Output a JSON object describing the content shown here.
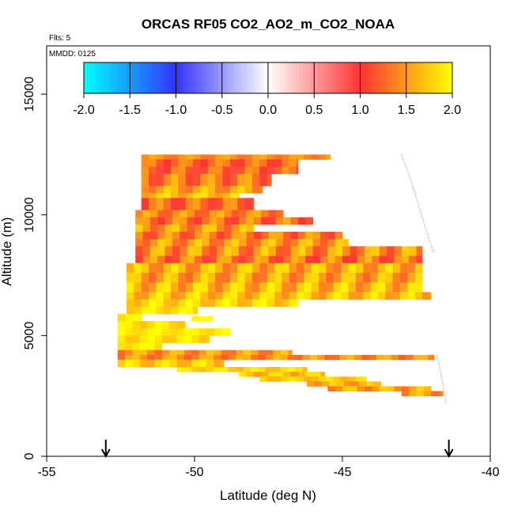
{
  "chart_data": {
    "type": "heatmap",
    "title": "ORCAS RF05 CO2_AO2_m_CO2_NOAA",
    "flights_label": "Flts: 5",
    "date_label": "MMDD: 0125",
    "xlabel": "Latitude (deg N)",
    "ylabel": "Altitude (m)",
    "xlim": [
      -55,
      -40
    ],
    "ylim": [
      0,
      17000
    ],
    "x_ticks": [
      -55,
      -50,
      -45,
      -40
    ],
    "x_tick_labels": [
      "-55",
      "-50",
      "-45",
      "-40"
    ],
    "y_ticks": [
      0,
      5000,
      10000,
      15000
    ],
    "y_tick_labels": [
      "0",
      "5000",
      "10000",
      "15000"
    ],
    "colorbar": {
      "range": [
        -2,
        2
      ],
      "ticks": [
        -2.0,
        -1.5,
        -1.0,
        -0.5,
        0.0,
        0.5,
        1.0,
        1.5,
        2.0
      ],
      "tick_labels": [
        "-2.0",
        "-1.5",
        "-1.0",
        "-0.5",
        "0.0",
        "0.5",
        "1.0",
        "1.5",
        "2.0"
      ],
      "colors": {
        "neg_2": "#00FFFF",
        "neg_1": "#3333FF",
        "zero": "#FFFFFF",
        "pos_1": "#FF3333",
        "pos_2": "#FFFF00"
      }
    },
    "arrows_lat": [
      -53.0,
      -41.4
    ],
    "flight_track": [
      [
        -43.0,
        12500
      ],
      [
        -42.7,
        11500
      ],
      [
        -42.2,
        9500
      ],
      [
        -41.9,
        8400
      ]
    ],
    "flight_track_lower": [
      [
        -41.8,
        4200
      ],
      [
        -41.6,
        3000
      ],
      [
        -41.5,
        2200
      ]
    ],
    "bands": [
      {
        "lat_start": -51.8,
        "lat_end": -45.4,
        "alt_low": 12300,
        "alt_high": 12500,
        "base": 1.45,
        "amp": 0.15
      },
      {
        "lat_start": -51.8,
        "lat_end": -46.5,
        "alt_low": 12000,
        "alt_high": 12300,
        "base": 1.25,
        "amp": 0.25
      },
      {
        "lat_start": -51.8,
        "lat_end": -46.5,
        "alt_low": 11700,
        "alt_high": 12000,
        "base": 1.2,
        "amp": 0.3
      },
      {
        "lat_start": -51.8,
        "lat_end": -47.4,
        "alt_low": 11200,
        "alt_high": 11700,
        "base": 1.35,
        "amp": 0.3
      },
      {
        "lat_start": -51.8,
        "lat_end": -47.7,
        "alt_low": 10900,
        "alt_high": 11200,
        "base": 1.55,
        "amp": 0.25
      },
      {
        "lat_start": -51.8,
        "lat_end": -48.5,
        "alt_low": 10700,
        "alt_high": 10900,
        "base": 1.7,
        "amp": 0.2
      },
      {
        "lat_start": -51.8,
        "lat_end": -48.0,
        "alt_low": 10200,
        "alt_high": 10700,
        "base": 1.25,
        "amp": 0.3
      },
      {
        "lat_start": -52.0,
        "lat_end": -47.0,
        "alt_low": 9900,
        "alt_high": 10200,
        "base": 1.4,
        "amp": 0.25
      },
      {
        "lat_start": -52.0,
        "lat_end": -46.0,
        "alt_low": 9600,
        "alt_high": 9900,
        "base": 1.3,
        "amp": 0.3
      },
      {
        "lat_start": -52.0,
        "lat_end": -48.0,
        "alt_low": 9300,
        "alt_high": 9600,
        "base": 1.5,
        "amp": 0.3
      },
      {
        "lat_start": -52.0,
        "lat_end": -45.0,
        "alt_low": 9000,
        "alt_high": 9300,
        "base": 1.35,
        "amp": 0.3
      },
      {
        "lat_start": -52.0,
        "lat_end": -44.8,
        "alt_low": 8700,
        "alt_high": 9000,
        "base": 1.5,
        "amp": 0.3
      },
      {
        "lat_start": -52.0,
        "lat_end": -42.3,
        "alt_low": 8300,
        "alt_high": 8700,
        "base": 1.45,
        "amp": 0.35
      },
      {
        "lat_start": -52.0,
        "lat_end": -42.3,
        "alt_low": 8000,
        "alt_high": 8300,
        "base": 1.3,
        "amp": 0.35
      },
      {
        "lat_start": -52.3,
        "lat_end": -42.3,
        "alt_low": 7600,
        "alt_high": 8000,
        "base": 1.6,
        "amp": 0.3
      },
      {
        "lat_start": -52.3,
        "lat_end": -42.3,
        "alt_low": 7200,
        "alt_high": 7600,
        "base": 1.55,
        "amp": 0.3
      },
      {
        "lat_start": -52.3,
        "lat_end": -42.3,
        "alt_low": 6800,
        "alt_high": 7200,
        "base": 1.65,
        "amp": 0.3
      },
      {
        "lat_start": -52.3,
        "lat_end": -42.0,
        "alt_low": 6500,
        "alt_high": 6800,
        "base": 1.7,
        "amp": 0.25
      },
      {
        "lat_start": -52.3,
        "lat_end": -46.5,
        "alt_low": 6200,
        "alt_high": 6500,
        "base": 1.8,
        "amp": 0.2
      },
      {
        "lat_start": -52.3,
        "lat_end": -49.9,
        "alt_low": 5900,
        "alt_high": 6200,
        "base": 1.85,
        "amp": 0.15
      },
      {
        "lat_start": -52.6,
        "lat_end": -51.8,
        "alt_low": 5600,
        "alt_high": 5900,
        "base": 1.9,
        "amp": 0.1
      },
      {
        "lat_start": -50.1,
        "lat_end": -49.4,
        "alt_low": 5600,
        "alt_high": 5800,
        "base": 1.95,
        "amp": 0.05
      },
      {
        "lat_start": -52.6,
        "lat_end": -50.3,
        "alt_low": 5300,
        "alt_high": 5600,
        "base": 1.85,
        "amp": 0.15
      },
      {
        "lat_start": -52.6,
        "lat_end": -48.8,
        "alt_low": 5000,
        "alt_high": 5300,
        "base": 1.9,
        "amp": 0.1
      },
      {
        "lat_start": -52.6,
        "lat_end": -49.5,
        "alt_low": 4700,
        "alt_high": 5000,
        "base": 1.85,
        "amp": 0.15
      },
      {
        "lat_start": -52.6,
        "lat_end": -51.1,
        "alt_low": 4400,
        "alt_high": 4700,
        "base": 1.9,
        "amp": 0.1
      },
      {
        "lat_start": -52.6,
        "lat_end": -46.7,
        "alt_low": 4200,
        "alt_high": 4400,
        "base": 1.5,
        "amp": 0.25
      },
      {
        "lat_start": -52.6,
        "lat_end": -41.9,
        "alt_low": 4000,
        "alt_high": 4200,
        "base": 1.45,
        "amp": 0.25
      },
      {
        "lat_start": -52.6,
        "lat_end": -49.0,
        "alt_low": 3700,
        "alt_high": 4000,
        "base": 1.75,
        "amp": 0.2
      },
      {
        "lat_start": -50.6,
        "lat_end": -46.2,
        "alt_low": 3500,
        "alt_high": 3700,
        "base": 1.8,
        "amp": 0.15
      },
      {
        "lat_start": -48.5,
        "lat_end": -45.6,
        "alt_low": 3300,
        "alt_high": 3500,
        "base": 1.7,
        "amp": 0.2
      },
      {
        "lat_start": -47.8,
        "lat_end": -44.2,
        "alt_low": 3100,
        "alt_high": 3300,
        "base": 1.75,
        "amp": 0.15
      },
      {
        "lat_start": -46.2,
        "lat_end": -43.7,
        "alt_low": 2900,
        "alt_high": 3100,
        "base": 1.6,
        "amp": 0.2
      },
      {
        "lat_start": -45.5,
        "lat_end": -42.0,
        "alt_low": 2700,
        "alt_high": 2900,
        "base": 1.55,
        "amp": 0.25
      },
      {
        "lat_start": -43.0,
        "lat_end": -41.6,
        "alt_low": 2500,
        "alt_high": 2700,
        "base": 1.5,
        "amp": 0.25
      }
    ]
  }
}
